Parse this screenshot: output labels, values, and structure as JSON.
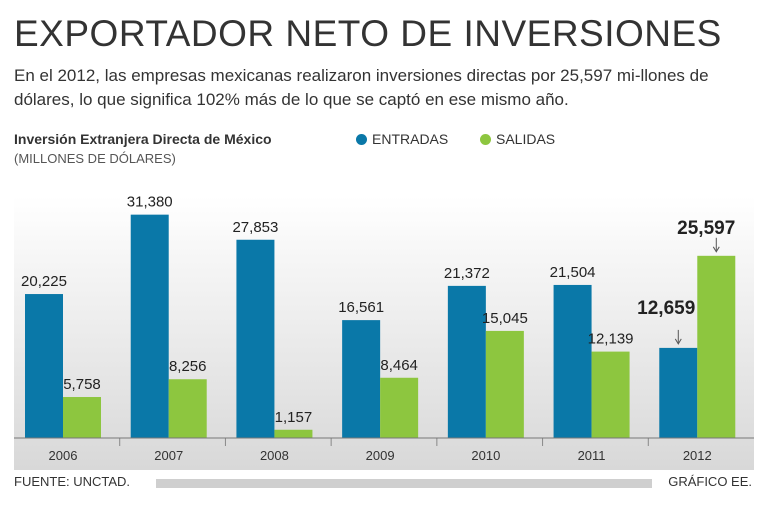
{
  "header": {
    "title": "EXPORTADOR NETO DE INVERSIONES",
    "subtitle": "En el 2012, las empresas mexicanas realizaron inversiones directas por 25,597 mi-llones de dólares, lo que significa 102% más de lo que se captó en ese mismo año."
  },
  "chart_data": {
    "type": "bar",
    "title": "Inversión Extranjera Directa de México",
    "ylabel": "(MILLONES DE DÓLARES)",
    "xlabel": "",
    "categories": [
      "2006",
      "2007",
      "2008",
      "2009",
      "2010",
      "2011",
      "2012"
    ],
    "series": [
      {
        "name": "ENTRADAS",
        "color": "#0a78a8",
        "values": [
          20225,
          31380,
          27853,
          16561,
          21372,
          21504,
          12659
        ],
        "labels": [
          "20,225",
          "31,380",
          "27,853",
          "16,561",
          "21,372",
          "21,504",
          "12,659"
        ]
      },
      {
        "name": "SALIDAS",
        "color": "#8dc63f",
        "values": [
          5758,
          8256,
          1157,
          8464,
          15045,
          12139,
          25597
        ],
        "labels": [
          "5,758",
          "8,256",
          "1,157",
          "8,464",
          "15,045",
          "12,139",
          "25,597"
        ]
      }
    ],
    "ylim": [
      0,
      34000
    ],
    "grid": false,
    "legend": "top",
    "highlight_category": "2012"
  },
  "footer": {
    "source": "FUENTE: UNCTAD.",
    "credit": "GRÁFICO EE."
  }
}
